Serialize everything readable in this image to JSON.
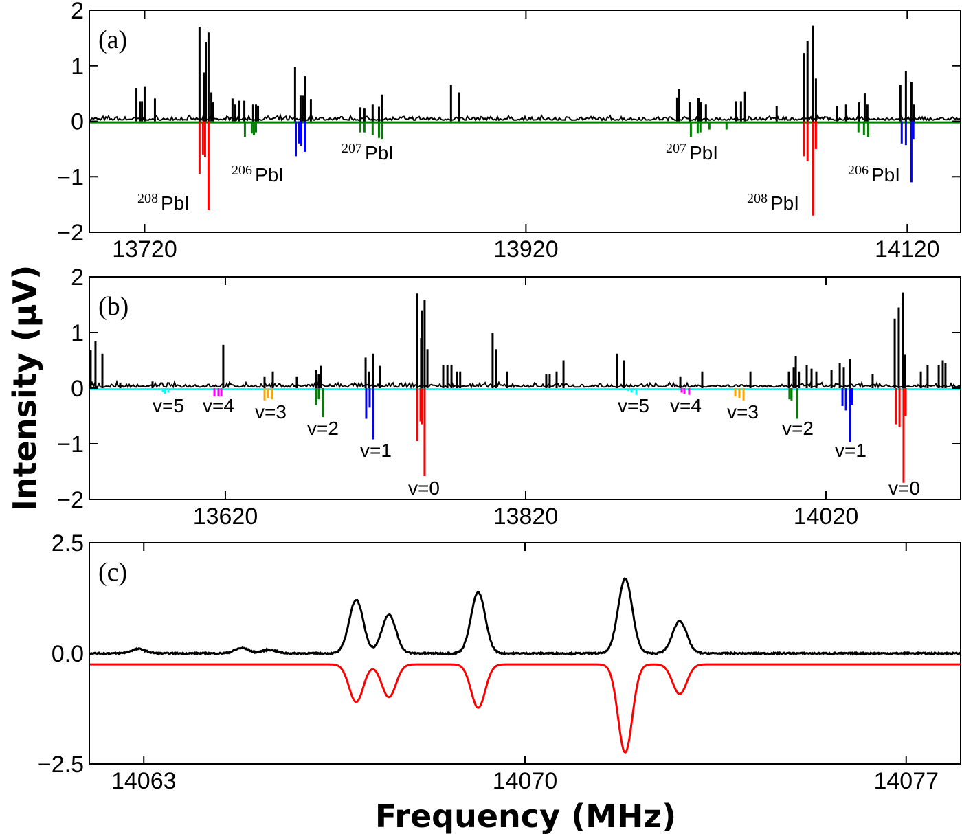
{
  "chart_data": [
    {
      "type": "bar",
      "panel_label": "(a)",
      "xlim": [
        13691,
        14148
      ],
      "ylim": [
        -2,
        2
      ],
      "xticks": [
        13720,
        13920,
        14120
      ],
      "yticks": [
        2,
        1,
        0,
        -1,
        -2
      ],
      "ytick_labels": [
        "2",
        "1",
        "0",
        "−1",
        "−2"
      ],
      "grid": false,
      "baseline_color": "#008000",
      "series": [
        {
          "color": "#000000",
          "x": [
            13715.7,
            13717.5,
            13718.6,
            13720,
            13725.4,
            13748.8,
            13751.0,
            13752.1,
            13753.5,
            13755.0,
            13756.0,
            13766.1,
            13767.6,
            13769.7,
            13772.3,
            13776.9,
            13778.4,
            13779.5,
            13798.9,
            13801.8,
            13802.9,
            13804.0,
            13807.2,
            13833.2,
            13835.3,
            13839.6,
            13842.9,
            13844.7,
            13880.7,
            13885.0,
            13999.3,
            14000.4,
            14005.8,
            14010.5,
            14011.9,
            14014.4,
            14030.3,
            14032.8,
            14034.9,
            14051.5,
            14065.9,
            14067.7,
            14070.6,
            14072.1,
            14083.2,
            14087.9,
            14094.8,
            14097.7,
            14099.1,
            14116.4,
            14119.3,
            14122.2,
            14123.6
          ],
          "y": [
            0.6,
            0.36,
            0.36,
            0.63,
            0.41,
            1.7,
            0.88,
            1.43,
            1.6,
            0.52,
            0.34,
            0.41,
            0.3,
            0.37,
            0.37,
            0.3,
            0.3,
            0.28,
            0.98,
            0.46,
            0.46,
            0.81,
            0.4,
            0.25,
            0.24,
            0.3,
            0.26,
            0.48,
            0.65,
            0.52,
            0.43,
            0.58,
            0.34,
            0.42,
            0.34,
            0.3,
            0.36,
            0.36,
            0.53,
            0.27,
            1.23,
            1.45,
            1.72,
            0.77,
            0.27,
            0.3,
            0.34,
            0.5,
            0.3,
            0.65,
            0.9,
            0.71,
            0.3
          ]
        },
        {
          "color": "#ff0000",
          "x": [
            13748.8,
            13750.6,
            13751.7,
            13753.5,
            14065.9,
            14067.7,
            14070.6,
            14072.1
          ],
          "y": [
            -0.95,
            -0.6,
            -0.65,
            -1.6,
            -0.63,
            -0.72,
            -1.7,
            -0.5
          ]
        },
        {
          "color": "#008000",
          "x": [
            13772.6,
            13776.2,
            13777.3,
            13778.4,
            13833.2,
            13835.3,
            13839.6,
            13842.9,
            13844.7,
            14006.5,
            14010.1,
            14011.5,
            14016.2,
            14025.2,
            14094.4,
            14097.3,
            14099.5
          ],
          "y": [
            -0.28,
            -0.22,
            -0.25,
            -0.2,
            -0.2,
            -0.2,
            -0.25,
            -0.3,
            -0.33,
            -0.28,
            -0.22,
            -0.2,
            -0.15,
            -0.15,
            -0.2,
            -0.25,
            -0.28
          ]
        },
        {
          "color": "#0000ff",
          "x": [
            13799.3,
            13801.1,
            13802.2,
            13804.0,
            14117.1,
            14119.3,
            14122.2,
            14123.2
          ],
          "y": [
            -0.63,
            -0.4,
            -0.45,
            -0.55,
            -0.4,
            -0.43,
            -1.1,
            -0.33
          ]
        }
      ],
      "annotations": [
        {
          "mass": "208",
          "text": "PbI"
        },
        {
          "mass": "206",
          "text": "PbI"
        },
        {
          "mass": "207",
          "text": "PbI"
        },
        {
          "mass": "207",
          "text": "PbI"
        },
        {
          "mass": "208",
          "text": "PbI"
        },
        {
          "mass": "206",
          "text": "PbI"
        }
      ]
    },
    {
      "type": "bar",
      "panel_label": "(b)",
      "xlim": [
        13529.4,
        14109.7
      ],
      "ylim": [
        -2,
        2
      ],
      "xticks": [
        13620,
        13820,
        14020
      ],
      "yticks": [
        2,
        1,
        0,
        -1,
        -2
      ],
      "ytick_labels": [
        "2",
        "1",
        "0",
        "−1",
        "−2"
      ],
      "grid": false,
      "baseline_color": "#00ffff",
      "series": [
        {
          "color": "#000000",
          "x": [
            13530.3,
            13533.5,
            13538.1,
            13550,
            13571.5,
            13618.6,
            13646.1,
            13651.6,
            13667.6,
            13680.4,
            13682.2,
            13683.6,
            13713.4,
            13715.7,
            13718.4,
            13723,
            13747.7,
            13750.4,
            13750.9,
            13752.7,
            13754.6,
            13765.1,
            13767.9,
            13770.6,
            13774.2,
            13776.4,
            13798,
            13800.3,
            13807.6,
            13833.7,
            13836,
            13840.6,
            13845.2,
            13880.9,
            13885.5,
            13923,
            13937.6,
            13969.7,
            13995.3,
            13998.5,
            13999.9,
            14002,
            14007.2,
            14010.4,
            14013.6,
            14023.7,
            14029.2,
            14031.9,
            14036,
            14051.1,
            14065.8,
            14068.5,
            14071.3,
            14072.7,
            14083.2,
            14087.7,
            14095.1,
            14097.8,
            14099.6
          ],
          "y": [
            0.68,
            0.84,
            0.62,
            0.1,
            0.12,
            0.78,
            0.2,
            0.3,
            0.2,
            0.33,
            0.25,
            0.4,
            0.55,
            0.3,
            0.62,
            0.4,
            1.7,
            0.9,
            1.4,
            1.58,
            0.7,
            0.42,
            0.42,
            0.42,
            0.3,
            0.3,
            1.0,
            0.7,
            0.3,
            0.25,
            0.25,
            0.3,
            0.5,
            0.62,
            0.5,
            0.2,
            0.3,
            0.3,
            0.3,
            0.38,
            0.58,
            0.3,
            0.42,
            0.35,
            0.3,
            0.33,
            0.45,
            0.38,
            0.52,
            0.25,
            1.25,
            1.45,
            1.72,
            0.6,
            0.3,
            0.42,
            0.42,
            0.5,
            0.45
          ]
        },
        {
          "color": "#00ffff",
          "x": [
            13578.4,
            13579.7,
            13582,
            13888.2,
            13890.5,
            13893.7
          ],
          "y": [
            -0.07,
            -0.1,
            -0.08,
            -0.05,
            -0.08,
            -0.12
          ]
        },
        {
          "color": "#ff00ff",
          "x": [
            13612.7,
            13615.4,
            13617.3,
            13923.9,
            13925.7,
            13928.9
          ],
          "y": [
            -0.15,
            -0.15,
            -0.15,
            -0.08,
            -0.1,
            -0.12
          ]
        },
        {
          "color": "#ffa500",
          "x": [
            13646.1,
            13648.4,
            13651.1,
            13959.6,
            13962.3,
            13965.1
          ],
          "y": [
            -0.22,
            -0.18,
            -0.2,
            -0.15,
            -0.18,
            -0.22
          ]
        },
        {
          "color": "#008000",
          "x": [
            13680.4,
            13682.2,
            13685,
            13995.7,
            13997.1,
            14000.8
          ],
          "y": [
            -0.3,
            -0.2,
            -0.52,
            -0.2,
            -0.22,
            -0.55
          ]
        },
        {
          "color": "#0000ff",
          "x": [
            13713.8,
            13716.1,
            13718.4,
            14031,
            14033.3,
            14036,
            14037.4
          ],
          "y": [
            -0.55,
            -0.35,
            -0.92,
            -0.32,
            -0.4,
            -0.97,
            -0.3
          ]
        },
        {
          "color": "#ff0000",
          "x": [
            13747.7,
            13750,
            13750.9,
            13752.7,
            14066.7,
            14069,
            14071.7,
            14073.1
          ],
          "y": [
            -0.95,
            -0.6,
            -0.65,
            -1.58,
            -0.65,
            -0.7,
            -1.7,
            -0.5
          ]
        }
      ],
      "annotations": [
        "v=5",
        "v=4",
        "v=3",
        "v=2",
        "v=1",
        "v=0",
        "v=5",
        "v=4",
        "v=3",
        "v=2",
        "v=1",
        "v=0"
      ]
    },
    {
      "type": "line",
      "panel_label": "(c)",
      "xlim": [
        14062,
        14078
      ],
      "ylim": [
        -2.5,
        2.5
      ],
      "xticks": [
        14063,
        14070,
        14077
      ],
      "yticks": [
        2.5,
        0.0,
        -2.5
      ],
      "ytick_labels": [
        "2.5",
        "0.0",
        "−2.5"
      ],
      "grid": false,
      "series": [
        {
          "color": "#000000",
          "baseline": 0.0,
          "peaks_x": [
            14062.9,
            14064.8,
            14065.3,
            14066.9,
            14067.5,
            14069.14,
            14071.84,
            14072.84
          ],
          "peaks_y": [
            0.1,
            0.12,
            0.08,
            1.21,
            0.87,
            1.38,
            1.69,
            0.73
          ]
        },
        {
          "color": "#ff0000",
          "baseline": -0.25,
          "peaks_x": [
            14066.9,
            14067.5,
            14069.14,
            14071.84,
            14072.84
          ],
          "peaks_y": [
            -0.85,
            -0.74,
            -0.98,
            -1.99,
            -0.67
          ]
        }
      ]
    }
  ],
  "ylabel": "Intensity (μV)",
  "xlabel": "Frequency (MHz)"
}
